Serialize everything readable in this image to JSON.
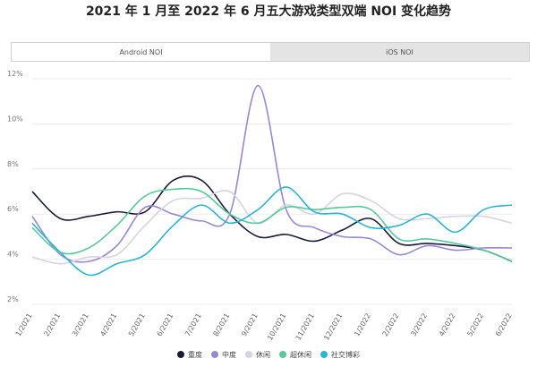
{
  "title": "2021 年 1 月至 2022 年 6 月五大游戏类型双端 NOI 变化趋势",
  "tabs": [
    {
      "label": "Android NOI",
      "active": true
    },
    {
      "label": "iOS NOI",
      "active": false
    }
  ],
  "chart_data": {
    "type": "line",
    "categories": [
      "1/2021",
      "2/2021",
      "3/2021",
      "4/2021",
      "5/2021",
      "6/2021",
      "7/2021",
      "8/2021",
      "9/2021",
      "10/2021",
      "11/2021",
      "12/2021",
      "1/2022",
      "2/2022",
      "3/2022",
      "4/2022",
      "5/2022",
      "6/2022"
    ],
    "yticks": [
      "2%",
      "4%",
      "6%",
      "8%",
      "10%",
      "12%"
    ],
    "ylim": [
      2,
      12
    ],
    "grid": true,
    "legend_position": "bottom",
    "series": [
      {
        "name": "重度",
        "color": "#1a1a3a",
        "values": [
          7.0,
          5.8,
          5.9,
          6.1,
          6.1,
          7.5,
          7.5,
          6.0,
          5.0,
          5.1,
          4.8,
          5.3,
          5.8,
          4.7,
          4.7,
          4.6,
          4.4,
          3.9
        ]
      },
      {
        "name": "中度",
        "color": "#9b86d6",
        "values": [
          5.9,
          4.2,
          3.9,
          4.6,
          6.3,
          6.0,
          5.7,
          6.0,
          11.7,
          6.2,
          5.4,
          5.0,
          4.9,
          4.2,
          4.6,
          4.4,
          4.5,
          4.5
        ]
      },
      {
        "name": "休闲",
        "color": "#d4d4e4",
        "values": [
          4.1,
          3.8,
          4.1,
          4.2,
          5.5,
          6.6,
          6.7,
          7.0,
          5.6,
          6.4,
          6.0,
          6.9,
          6.6,
          5.8,
          5.8,
          5.9,
          5.9,
          5.6
        ]
      },
      {
        "name": "超休闲",
        "color": "#58c99a",
        "values": [
          5.4,
          4.3,
          4.5,
          5.5,
          6.8,
          7.1,
          7.0,
          6.0,
          5.6,
          6.3,
          6.2,
          6.3,
          6.2,
          4.9,
          4.9,
          4.7,
          4.4,
          3.9
        ]
      },
      {
        "name": "社交博彩",
        "color": "#29b5d3",
        "values": [
          5.6,
          4.3,
          3.3,
          3.8,
          4.2,
          5.5,
          6.4,
          5.6,
          6.2,
          7.2,
          6.1,
          6.0,
          5.4,
          5.5,
          6.0,
          5.2,
          6.2,
          6.4
        ]
      }
    ]
  }
}
